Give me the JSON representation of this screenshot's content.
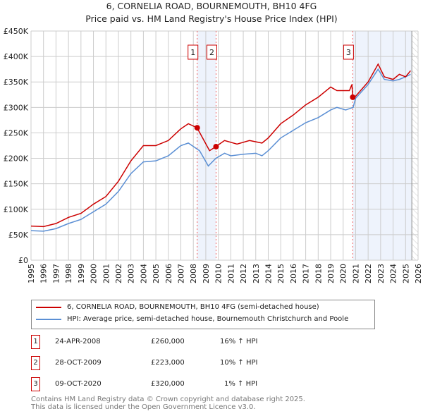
{
  "title_line1": "6, CORNELIA ROAD, BOURNEMOUTH, BH10 4FG",
  "title_line2": "Price paid vs. HM Land Registry's House Price Index (HPI)",
  "chart_data": {
    "type": "line",
    "title": "6, CORNELIA ROAD, BOURNEMOUTH, BH10 4FG — Price paid vs. HM Land Registry's House Price Index (HPI)",
    "xlim": [
      1995,
      2026
    ],
    "ylim": [
      0,
      450000
    ],
    "x_ticks": [
      "1995",
      "1996",
      "1997",
      "1998",
      "1999",
      "2000",
      "2001",
      "2002",
      "2003",
      "2004",
      "2005",
      "2006",
      "2007",
      "2008",
      "2009",
      "2010",
      "2011",
      "2012",
      "2013",
      "2014",
      "2015",
      "2016",
      "2017",
      "2018",
      "2019",
      "2020",
      "2021",
      "2022",
      "2023",
      "2024",
      "2025",
      "2026"
    ],
    "y_ticks": [
      {
        "v": 0,
        "label": "£0"
      },
      {
        "v": 50000,
        "label": "£50K"
      },
      {
        "v": 100000,
        "label": "£100K"
      },
      {
        "v": 150000,
        "label": "£150K"
      },
      {
        "v": 200000,
        "label": "£200K"
      },
      {
        "v": 250000,
        "label": "£250K"
      },
      {
        "v": 300000,
        "label": "£300K"
      },
      {
        "v": 350000,
        "label": "£350K"
      },
      {
        "v": 400000,
        "label": "£400K"
      },
      {
        "v": 450000,
        "label": "£450K"
      }
    ],
    "grid": true,
    "series": [
      {
        "name": "6, CORNELIA ROAD, BOURNEMOUTH, BH10 4FG (semi-detached house)",
        "color": "#cc0000",
        "x": [
          1995,
          1996,
          1997,
          1998,
          1999,
          2000,
          2001,
          2002,
          2003,
          2004,
          2005,
          2006,
          2007,
          2007.6,
          2008.3,
          2009.3,
          2009.8,
          2010.5,
          2011.5,
          2012.5,
          2013.5,
          2014,
          2015,
          2016,
          2017,
          2018,
          2019,
          2019.5,
          2020.5,
          2020.7,
          2020.77,
          2021,
          2022,
          2022.8,
          2023.3,
          2024,
          2024.5,
          2025,
          2025.4
        ],
        "y": [
          67000,
          66000,
          72000,
          84000,
          92000,
          110000,
          125000,
          155000,
          195000,
          225000,
          225000,
          235000,
          258000,
          268000,
          260000,
          215000,
          223000,
          235000,
          228000,
          235000,
          230000,
          240000,
          268000,
          285000,
          305000,
          320000,
          340000,
          333000,
          333000,
          345000,
          320000,
          322000,
          350000,
          385000,
          360000,
          355000,
          365000,
          360000,
          372000
        ]
      },
      {
        "name": "HPI: Average price, semi-detached house, Bournemouth Christchurch and Poole",
        "color": "#5b8fd4",
        "x": [
          1995,
          1996,
          1997,
          1998,
          1999,
          2000,
          2001,
          2002,
          2003,
          2004,
          2005,
          2006,
          2007,
          2007.6,
          2008.5,
          2009.2,
          2009.8,
          2010.5,
          2011,
          2012,
          2013,
          2013.5,
          2014,
          2015,
          2016,
          2017,
          2018,
          2019,
          2019.5,
          2020.2,
          2020.8,
          2021,
          2022,
          2022.8,
          2023.3,
          2024,
          2024.5,
          2025,
          2025.4
        ],
        "y": [
          58000,
          57000,
          62000,
          72000,
          80000,
          95000,
          110000,
          135000,
          170000,
          193000,
          195000,
          205000,
          225000,
          230000,
          215000,
          185000,
          200000,
          210000,
          205000,
          208000,
          210000,
          205000,
          215000,
          240000,
          255000,
          270000,
          280000,
          295000,
          300000,
          295000,
          300000,
          318000,
          345000,
          375000,
          355000,
          352000,
          355000,
          360000,
          365000
        ]
      }
    ],
    "sales": [
      {
        "label": "1",
        "date": "24-APR-2008",
        "x": 2008.31,
        "price": "£260,000",
        "value": 260000,
        "hpi": "16% ↑ HPI"
      },
      {
        "label": "2",
        "date": "28-OCT-2009",
        "x": 2009.82,
        "price": "£223,000",
        "value": 223000,
        "hpi": "10% ↑ HPI"
      },
      {
        "label": "3",
        "date": "09-OCT-2020",
        "x": 2020.77,
        "price": "£320,000",
        "value": 320000,
        "hpi": "1% ↑ HPI"
      }
    ],
    "shaded_ranges": [
      [
        2008.31,
        2009.82
      ],
      [
        2020.77,
        2025.5
      ]
    ],
    "hatched_from": 2025.5,
    "legend_placement": "below"
  },
  "legend": {
    "red_label": "6, CORNELIA ROAD, BOURNEMOUTH, BH10 4FG (semi-detached house)",
    "blue_label": "HPI: Average price, semi-detached house, Bournemouth Christchurch and Poole"
  },
  "footer": {
    "line1": "Contains HM Land Registry data © Crown copyright and database right 2025.",
    "line2": "This data is licensed under the Open Government Licence v3.0."
  }
}
